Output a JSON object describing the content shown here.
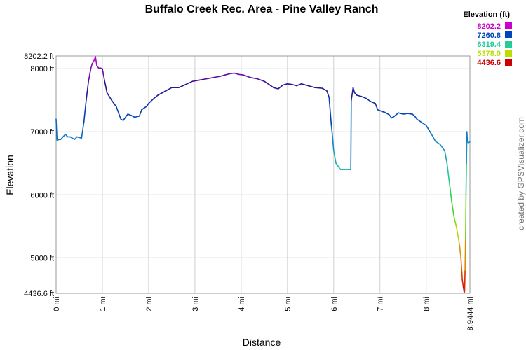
{
  "chart_data": {
    "type": "line",
    "title": "Buffalo Creek Rec. Area - Pine Valley Ranch",
    "xlabel": "Distance",
    "ylabel": "Elevation",
    "credit": "created by GPSVisualizer.com",
    "xlim": [
      0,
      8.9444
    ],
    "ylim": [
      4436.6,
      8202.2
    ],
    "x_ticks": [
      {
        "value": 0,
        "label": "0 mi"
      },
      {
        "value": 1,
        "label": "1 mi"
      },
      {
        "value": 2,
        "label": "2 mi"
      },
      {
        "value": 3,
        "label": "3 mi"
      },
      {
        "value": 4,
        "label": "4 mi"
      },
      {
        "value": 5,
        "label": "5 mi"
      },
      {
        "value": 6,
        "label": "6 mi"
      },
      {
        "value": 7,
        "label": "7 mi"
      },
      {
        "value": 8,
        "label": "8 mi"
      },
      {
        "value": 8.9444,
        "label": "8.9444 mi"
      }
    ],
    "y_ticks": [
      {
        "value": 8202.2,
        "label": "8202.2 ft"
      },
      {
        "value": 8000,
        "label": "8000 ft"
      },
      {
        "value": 7000,
        "label": "7000 ft"
      },
      {
        "value": 6000,
        "label": "6000 ft"
      },
      {
        "value": 5000,
        "label": "5000 ft"
      },
      {
        "value": 4436.6,
        "label": "4436.6 ft"
      }
    ],
    "grid": true,
    "legend": {
      "title": "Elevation (ft)",
      "placement": "top-right",
      "entries": [
        {
          "label": "8202.2",
          "color": "#cc00cc"
        },
        {
          "label": "7260.8",
          "color": "#0044bb"
        },
        {
          "label": "6319.4",
          "color": "#22cc99"
        },
        {
          "label": "5378.0",
          "color": "#bbdd00"
        },
        {
          "label": "4436.6",
          "color": "#cc0000"
        }
      ]
    },
    "x": [
      0.0,
      0.02,
      0.1,
      0.2,
      0.25,
      0.3,
      0.4,
      0.45,
      0.55,
      0.6,
      0.65,
      0.7,
      0.75,
      0.78,
      0.82,
      0.85,
      0.88,
      0.92,
      0.96,
      1.0,
      1.05,
      1.1,
      1.2,
      1.3,
      1.4,
      1.45,
      1.55,
      1.62,
      1.7,
      1.8,
      1.85,
      1.95,
      2.0,
      2.1,
      2.2,
      2.35,
      2.5,
      2.65,
      2.8,
      2.95,
      3.1,
      3.25,
      3.4,
      3.55,
      3.65,
      3.75,
      3.85,
      3.95,
      4.05,
      4.2,
      4.35,
      4.5,
      4.6,
      4.7,
      4.8,
      4.9,
      5.0,
      5.1,
      5.2,
      5.3,
      5.45,
      5.6,
      5.75,
      5.85,
      5.9,
      5.95,
      5.97,
      6.0,
      6.05,
      6.1,
      6.15,
      6.25,
      6.37,
      6.38,
      6.42,
      6.45,
      6.5,
      6.6,
      6.7,
      6.8,
      6.9,
      6.95,
      7.05,
      7.1,
      7.2,
      7.25,
      7.3,
      7.4,
      7.5,
      7.6,
      7.7,
      7.75,
      7.8,
      7.9,
      8.0,
      8.1,
      8.2,
      8.3,
      8.4,
      8.45,
      8.5,
      8.55,
      8.6,
      8.65,
      8.7,
      8.72,
      8.75,
      8.77,
      8.78,
      8.8,
      8.82,
      8.83,
      8.84,
      8.85,
      8.86,
      8.87,
      8.88,
      8.89,
      8.9,
      8.92,
      8.9444
    ],
    "y": [
      7200,
      6870,
      6880,
      6960,
      6920,
      6920,
      6880,
      6920,
      6900,
      7150,
      7500,
      7800,
      8000,
      8080,
      8130,
      8190,
      8050,
      8010,
      8010,
      8000,
      7800,
      7620,
      7500,
      7400,
      7200,
      7180,
      7280,
      7260,
      7230,
      7250,
      7350,
      7400,
      7450,
      7520,
      7580,
      7640,
      7700,
      7700,
      7750,
      7800,
      7820,
      7840,
      7860,
      7880,
      7900,
      7920,
      7930,
      7910,
      7900,
      7860,
      7840,
      7800,
      7750,
      7700,
      7680,
      7740,
      7760,
      7750,
      7730,
      7760,
      7730,
      7700,
      7690,
      7650,
      7550,
      7100,
      6960,
      6700,
      6500,
      6450,
      6400,
      6400,
      6400,
      7500,
      7700,
      7620,
      7580,
      7560,
      7530,
      7480,
      7450,
      7350,
      7320,
      7310,
      7270,
      7220,
      7240,
      7300,
      7280,
      7290,
      7280,
      7250,
      7200,
      7150,
      7100,
      6980,
      6850,
      6800,
      6700,
      6500,
      6200,
      5900,
      5650,
      5500,
      5300,
      5200,
      5000,
      4780,
      4650,
      4550,
      4450,
      4470,
      4800,
      5300,
      6000,
      6500,
      7000,
      6850,
      6830,
      6830,
      6840
    ]
  }
}
